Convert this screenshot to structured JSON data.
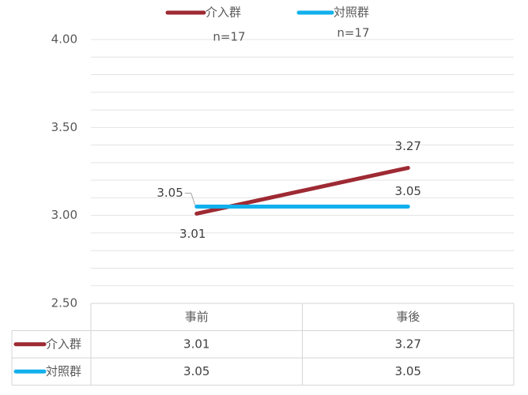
{
  "chart_data": {
    "type": "line",
    "categories": [
      "事前",
      "事後"
    ],
    "series": [
      {
        "name": "介入群",
        "color": "#9e2a33",
        "values": [
          3.01,
          3.27
        ]
      },
      {
        "name": "対照群",
        "color": "#12b0ec",
        "values": [
          3.05,
          3.05
        ]
      }
    ],
    "ylim": [
      2.5,
      4.0
    ],
    "yticks": [
      {
        "value": 2.5,
        "label": "2.50"
      },
      {
        "value": 3.0,
        "label": "3.00"
      },
      {
        "value": 3.5,
        "label": "3.50"
      },
      {
        "value": 4.0,
        "label": "4.00"
      }
    ],
    "minor_yticks": [
      2.6,
      2.7,
      2.8,
      2.9,
      3.1,
      3.2,
      3.3,
      3.4,
      3.6,
      3.7,
      3.8,
      3.9
    ],
    "grid": true,
    "annotations": [
      "n=17",
      "n=17"
    ],
    "data_table": true
  }
}
